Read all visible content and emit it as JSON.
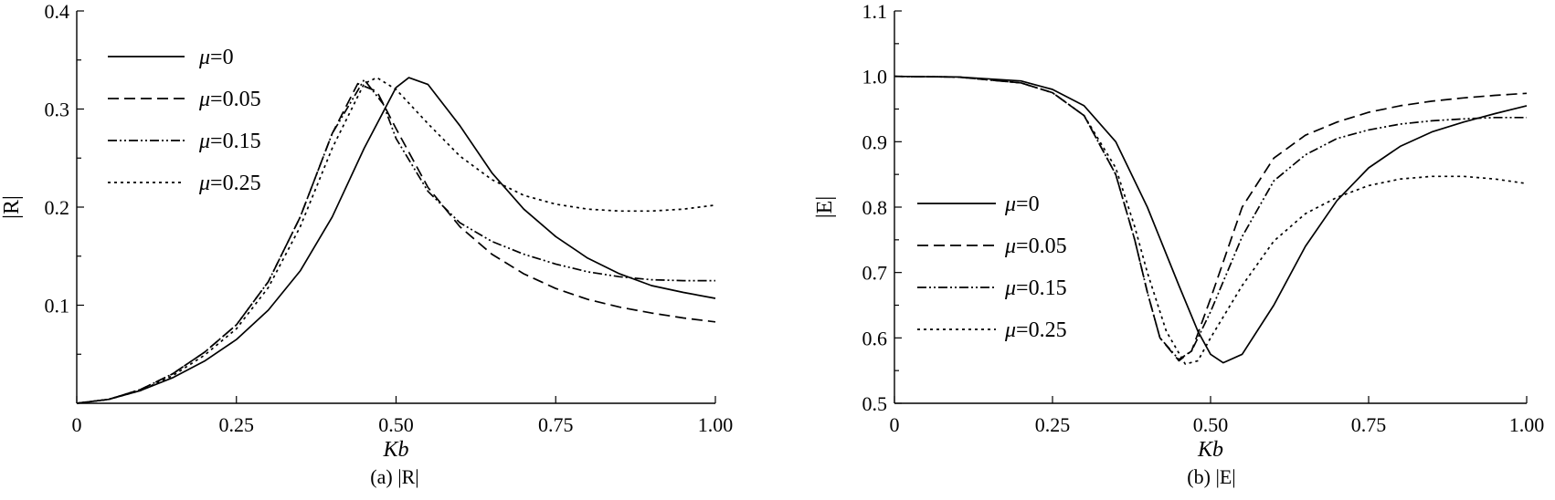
{
  "chart_data": [
    {
      "type": "line",
      "caption": "(a) |R|",
      "xlabel": "Kb",
      "ylabel": "|R|",
      "xlim": [
        0,
        1.0
      ],
      "ylim": [
        0,
        0.4
      ],
      "xticks": [
        "0",
        "0.25",
        "0.50",
        "0.75",
        "1.00"
      ],
      "yticks": [
        "0.1",
        "0.2",
        "0.3",
        "0.4"
      ],
      "legend_position": "top-left",
      "series": [
        {
          "name": "μ=0",
          "dash": "solid",
          "x": [
            0,
            0.05,
            0.1,
            0.15,
            0.2,
            0.25,
            0.3,
            0.35,
            0.4,
            0.45,
            0.5,
            0.52,
            0.55,
            0.6,
            0.65,
            0.7,
            0.75,
            0.8,
            0.85,
            0.9,
            0.95,
            1.0
          ],
          "y": [
            0,
            0.004,
            0.013,
            0.026,
            0.043,
            0.065,
            0.095,
            0.135,
            0.19,
            0.26,
            0.322,
            0.332,
            0.325,
            0.283,
            0.235,
            0.198,
            0.17,
            0.148,
            0.132,
            0.12,
            0.113,
            0.107
          ]
        },
        {
          "name": "μ=0.05",
          "dash": "dashed",
          "x": [
            0,
            0.05,
            0.1,
            0.15,
            0.2,
            0.25,
            0.3,
            0.35,
            0.4,
            0.44,
            0.47,
            0.5,
            0.55,
            0.6,
            0.65,
            0.7,
            0.75,
            0.8,
            0.85,
            0.9,
            0.95,
            1.0
          ],
          "y": [
            0,
            0.004,
            0.014,
            0.03,
            0.052,
            0.08,
            0.124,
            0.19,
            0.275,
            0.326,
            0.318,
            0.28,
            0.22,
            0.18,
            0.152,
            0.132,
            0.117,
            0.106,
            0.098,
            0.092,
            0.087,
            0.083
          ]
        },
        {
          "name": "μ=0.15",
          "dash": "dashdotdot",
          "x": [
            0,
            0.05,
            0.1,
            0.15,
            0.2,
            0.25,
            0.3,
            0.35,
            0.4,
            0.45,
            0.48,
            0.5,
            0.55,
            0.6,
            0.65,
            0.7,
            0.75,
            0.8,
            0.85,
            0.9,
            0.95,
            1.0
          ],
          "y": [
            0,
            0.004,
            0.014,
            0.03,
            0.052,
            0.08,
            0.124,
            0.19,
            0.275,
            0.33,
            0.305,
            0.27,
            0.216,
            0.184,
            0.165,
            0.152,
            0.142,
            0.134,
            0.129,
            0.126,
            0.125,
            0.125
          ]
        },
        {
          "name": "μ=0.25",
          "dash": "dotted",
          "x": [
            0,
            0.05,
            0.1,
            0.15,
            0.2,
            0.25,
            0.3,
            0.35,
            0.4,
            0.45,
            0.47,
            0.5,
            0.55,
            0.6,
            0.65,
            0.7,
            0.75,
            0.8,
            0.85,
            0.9,
            0.95,
            1.0
          ],
          "y": [
            0,
            0.004,
            0.013,
            0.028,
            0.049,
            0.076,
            0.118,
            0.18,
            0.26,
            0.326,
            0.332,
            0.32,
            0.285,
            0.252,
            0.228,
            0.212,
            0.203,
            0.198,
            0.196,
            0.196,
            0.198,
            0.202
          ]
        }
      ],
      "legend_labels": [
        "μ=0",
        "μ=0.05",
        "μ=0.15",
        "μ=0.25"
      ]
    },
    {
      "type": "line",
      "caption": "(b) |E|",
      "xlabel": "Kb",
      "ylabel": "|E|",
      "xlim": [
        0,
        1.0
      ],
      "ylim": [
        0.5,
        1.1
      ],
      "xticks": [
        "0",
        "0.25",
        "0.50",
        "0.75",
        "1.00"
      ],
      "yticks": [
        "0.5",
        "0.6",
        "0.7",
        "0.8",
        "0.9",
        "1.0",
        "1.1"
      ],
      "legend_position": "center-left",
      "series": [
        {
          "name": "μ=0",
          "dash": "solid",
          "x": [
            0,
            0.1,
            0.2,
            0.25,
            0.3,
            0.35,
            0.4,
            0.45,
            0.48,
            0.5,
            0.52,
            0.55,
            0.6,
            0.65,
            0.7,
            0.75,
            0.8,
            0.85,
            0.9,
            0.95,
            1.0
          ],
          "y": [
            1.0,
            0.999,
            0.993,
            0.98,
            0.955,
            0.9,
            0.8,
            0.68,
            0.61,
            0.575,
            0.562,
            0.575,
            0.65,
            0.74,
            0.81,
            0.86,
            0.893,
            0.915,
            0.93,
            0.943,
            0.955
          ]
        },
        {
          "name": "μ=0.05",
          "dash": "dashed",
          "x": [
            0,
            0.1,
            0.2,
            0.25,
            0.3,
            0.35,
            0.38,
            0.4,
            0.42,
            0.45,
            0.47,
            0.5,
            0.55,
            0.6,
            0.65,
            0.7,
            0.75,
            0.8,
            0.85,
            0.9,
            0.95,
            1.0
          ],
          "y": [
            1.0,
            0.999,
            0.99,
            0.975,
            0.94,
            0.85,
            0.75,
            0.67,
            0.6,
            0.565,
            0.58,
            0.66,
            0.8,
            0.875,
            0.91,
            0.93,
            0.945,
            0.955,
            0.962,
            0.967,
            0.971,
            0.974
          ]
        },
        {
          "name": "μ=0.15",
          "dash": "dashdotdot",
          "x": [
            0,
            0.1,
            0.2,
            0.25,
            0.3,
            0.35,
            0.38,
            0.4,
            0.42,
            0.45,
            0.47,
            0.5,
            0.55,
            0.6,
            0.65,
            0.7,
            0.75,
            0.8,
            0.85,
            0.9,
            0.95,
            1.0
          ],
          "y": [
            1.0,
            0.999,
            0.99,
            0.975,
            0.94,
            0.85,
            0.75,
            0.67,
            0.6,
            0.567,
            0.58,
            0.64,
            0.755,
            0.84,
            0.88,
            0.905,
            0.918,
            0.927,
            0.932,
            0.935,
            0.937,
            0.937
          ]
        },
        {
          "name": "μ=0.25",
          "dash": "dotted",
          "x": [
            0,
            0.1,
            0.2,
            0.25,
            0.3,
            0.35,
            0.38,
            0.4,
            0.43,
            0.46,
            0.48,
            0.5,
            0.55,
            0.6,
            0.65,
            0.7,
            0.75,
            0.8,
            0.85,
            0.9,
            0.95,
            1.0
          ],
          "y": [
            1.0,
            0.999,
            0.99,
            0.975,
            0.94,
            0.86,
            0.77,
            0.7,
            0.61,
            0.56,
            0.565,
            0.6,
            0.68,
            0.748,
            0.79,
            0.815,
            0.833,
            0.843,
            0.847,
            0.847,
            0.843,
            0.836
          ]
        }
      ],
      "legend_labels": [
        "μ=0",
        "μ=0.05",
        "μ=0.15",
        "μ=0.25"
      ]
    }
  ]
}
